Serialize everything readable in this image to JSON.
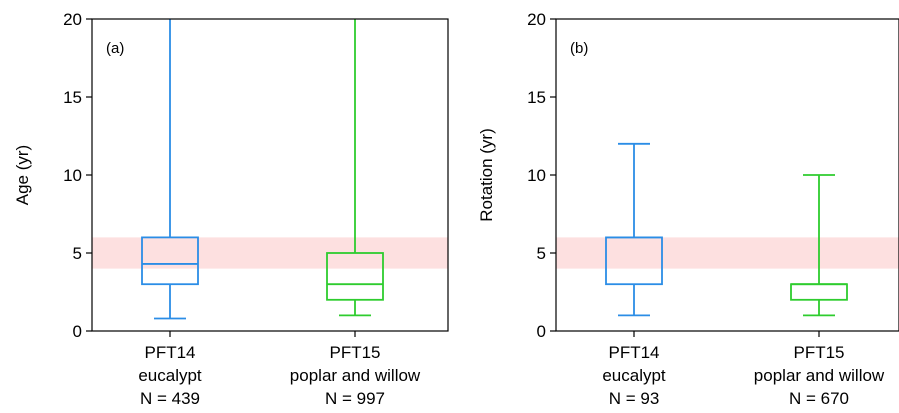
{
  "chart_data": [
    {
      "type": "box",
      "panel_label": "(a)",
      "ylabel": "Age (yr)",
      "ylim": [
        0,
        20
      ],
      "yticks": [
        0,
        5,
        10,
        15,
        20
      ],
      "shaded_band": {
        "y_range": [
          4,
          6
        ],
        "color": "#fde0e0"
      },
      "categories": [
        {
          "lines": [
            "PFT14",
            "eucalypt",
            "N = 439"
          ],
          "color": "#2b8de6",
          "whisker_low": 0.8,
          "q1": 3,
          "median": 4.3,
          "q3": 6,
          "whisker_high": 20
        },
        {
          "lines": [
            "PFT15",
            "poplar and willow",
            "N = 997"
          ],
          "color": "#2ecc2e",
          "whisker_low": 1,
          "q1": 2,
          "median": 3,
          "q3": 5,
          "whisker_high": 20
        }
      ]
    },
    {
      "type": "box",
      "panel_label": "(b)",
      "ylabel": "Rotation (yr)",
      "ylim": [
        0,
        20
      ],
      "yticks": [
        0,
        5,
        10,
        15,
        20
      ],
      "shaded_band": {
        "y_range": [
          4,
          6
        ],
        "color": "#fde0e0"
      },
      "categories": [
        {
          "lines": [
            "PFT14",
            "eucalypt",
            "N = 93"
          ],
          "color": "#2b8de6",
          "whisker_low": 1,
          "q1": 3,
          "median": 6,
          "q3": 6,
          "whisker_high": 12
        },
        {
          "lines": [
            "PFT15",
            "poplar and willow",
            "N = 670"
          ],
          "color": "#2ecc2e",
          "whisker_low": 1,
          "q1": 2,
          "median": 3,
          "q3": 3,
          "whisker_high": 10
        }
      ]
    }
  ]
}
